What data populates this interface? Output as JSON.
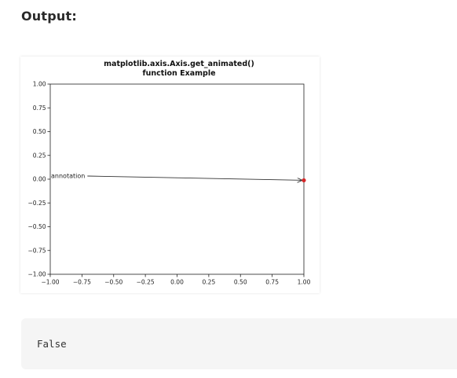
{
  "heading": "Output:",
  "output_text": "False",
  "chart_data": {
    "type": "line",
    "title_line1": "matplotlib.axis.Axis.get_animated()",
    "title_line2": "function Example",
    "xlabel": "",
    "ylabel": "",
    "xlim": [
      -1.0,
      1.0
    ],
    "ylim": [
      -1.0,
      1.0
    ],
    "grid": false,
    "x_ticks": [
      {
        "value": -1.0,
        "label": "−1.00"
      },
      {
        "value": -0.75,
        "label": "−0.75"
      },
      {
        "value": -0.5,
        "label": "−0.50"
      },
      {
        "value": -0.25,
        "label": "−0.25"
      },
      {
        "value": 0.0,
        "label": "0.00"
      },
      {
        "value": 0.25,
        "label": "0.25"
      },
      {
        "value": 0.5,
        "label": "0.50"
      },
      {
        "value": 0.75,
        "label": "0.75"
      },
      {
        "value": 1.0,
        "label": "1.00"
      }
    ],
    "y_ticks": [
      {
        "value": 1.0,
        "label": "1.00"
      },
      {
        "value": 0.75,
        "label": "0.75"
      },
      {
        "value": 0.5,
        "label": "0.50"
      },
      {
        "value": 0.25,
        "label": "0.25"
      },
      {
        "value": 0.0,
        "label": "0.00"
      },
      {
        "value": -0.25,
        "label": "−0.25"
      },
      {
        "value": -0.5,
        "label": "−0.50"
      },
      {
        "value": -0.75,
        "label": "−0.75"
      },
      {
        "value": -1.0,
        "label": "−1.00"
      }
    ],
    "annotation": {
      "text": "annotation",
      "text_xy": [
        -1.0,
        0.0
      ],
      "arrow_to": [
        1.0,
        -0.02
      ]
    },
    "point": {
      "x": 1.0,
      "y": -0.02,
      "color": "#d62728"
    },
    "arrow_color": "#333333"
  }
}
